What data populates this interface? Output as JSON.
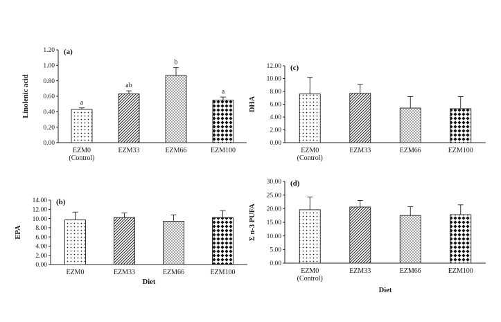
{
  "categories": [
    "EZM0",
    "EZM33",
    "EZM66",
    "EZM100"
  ],
  "category_sublabel": "(Control)",
  "x_title": "Diet",
  "fills": [
    "dots",
    "diagonal",
    "crosshatch",
    "checker"
  ],
  "chart_data": [
    {
      "type": "bar",
      "panel_label": "(a)",
      "ylabel": "Linolenic acid",
      "ylim": [
        0,
        1.2
      ],
      "yticks": [
        "0.00",
        "0.20",
        "0.40",
        "0.60",
        "0.80",
        "1.00",
        "1.20"
      ],
      "values": [
        0.43,
        0.63,
        0.87,
        0.55
      ],
      "errors": [
        0.02,
        0.04,
        0.1,
        0.04
      ],
      "letters": [
        "a",
        "ab",
        "b",
        "a"
      ],
      "show_xtitle": false
    },
    {
      "type": "bar",
      "panel_label": "(b)",
      "ylabel": "EPA",
      "ylim": [
        0,
        14
      ],
      "yticks": [
        "0.00",
        "2.00",
        "4.00",
        "6.00",
        "8.00",
        "10.00",
        "12.00",
        "14.00"
      ],
      "values": [
        9.7,
        10.2,
        9.4,
        10.2
      ],
      "errors": [
        1.7,
        1.0,
        1.4,
        1.5
      ],
      "letters": [],
      "show_xtitle": true
    },
    {
      "type": "bar",
      "panel_label": "(c)",
      "ylabel": "DHA",
      "ylim": [
        0,
        12
      ],
      "yticks": [
        "0.00",
        "2.00",
        "4.00",
        "6.00",
        "8.00",
        "10.00",
        "12.00"
      ],
      "values": [
        7.6,
        7.7,
        5.4,
        5.3
      ],
      "errors": [
        2.6,
        1.4,
        1.8,
        1.9
      ],
      "letters": [],
      "show_xtitle": false
    },
    {
      "type": "bar",
      "panel_label": "(d)",
      "ylabel": "Σ n-3 PUFA",
      "ylim": [
        0,
        30
      ],
      "yticks": [
        "0.00",
        "5.00",
        "10.00",
        "15.00",
        "20.00",
        "25.00",
        "30.00"
      ],
      "values": [
        19.6,
        20.6,
        17.5,
        17.8
      ],
      "errors": [
        4.7,
        2.4,
        3.2,
        3.6
      ],
      "letters": [],
      "show_xtitle": true
    }
  ]
}
